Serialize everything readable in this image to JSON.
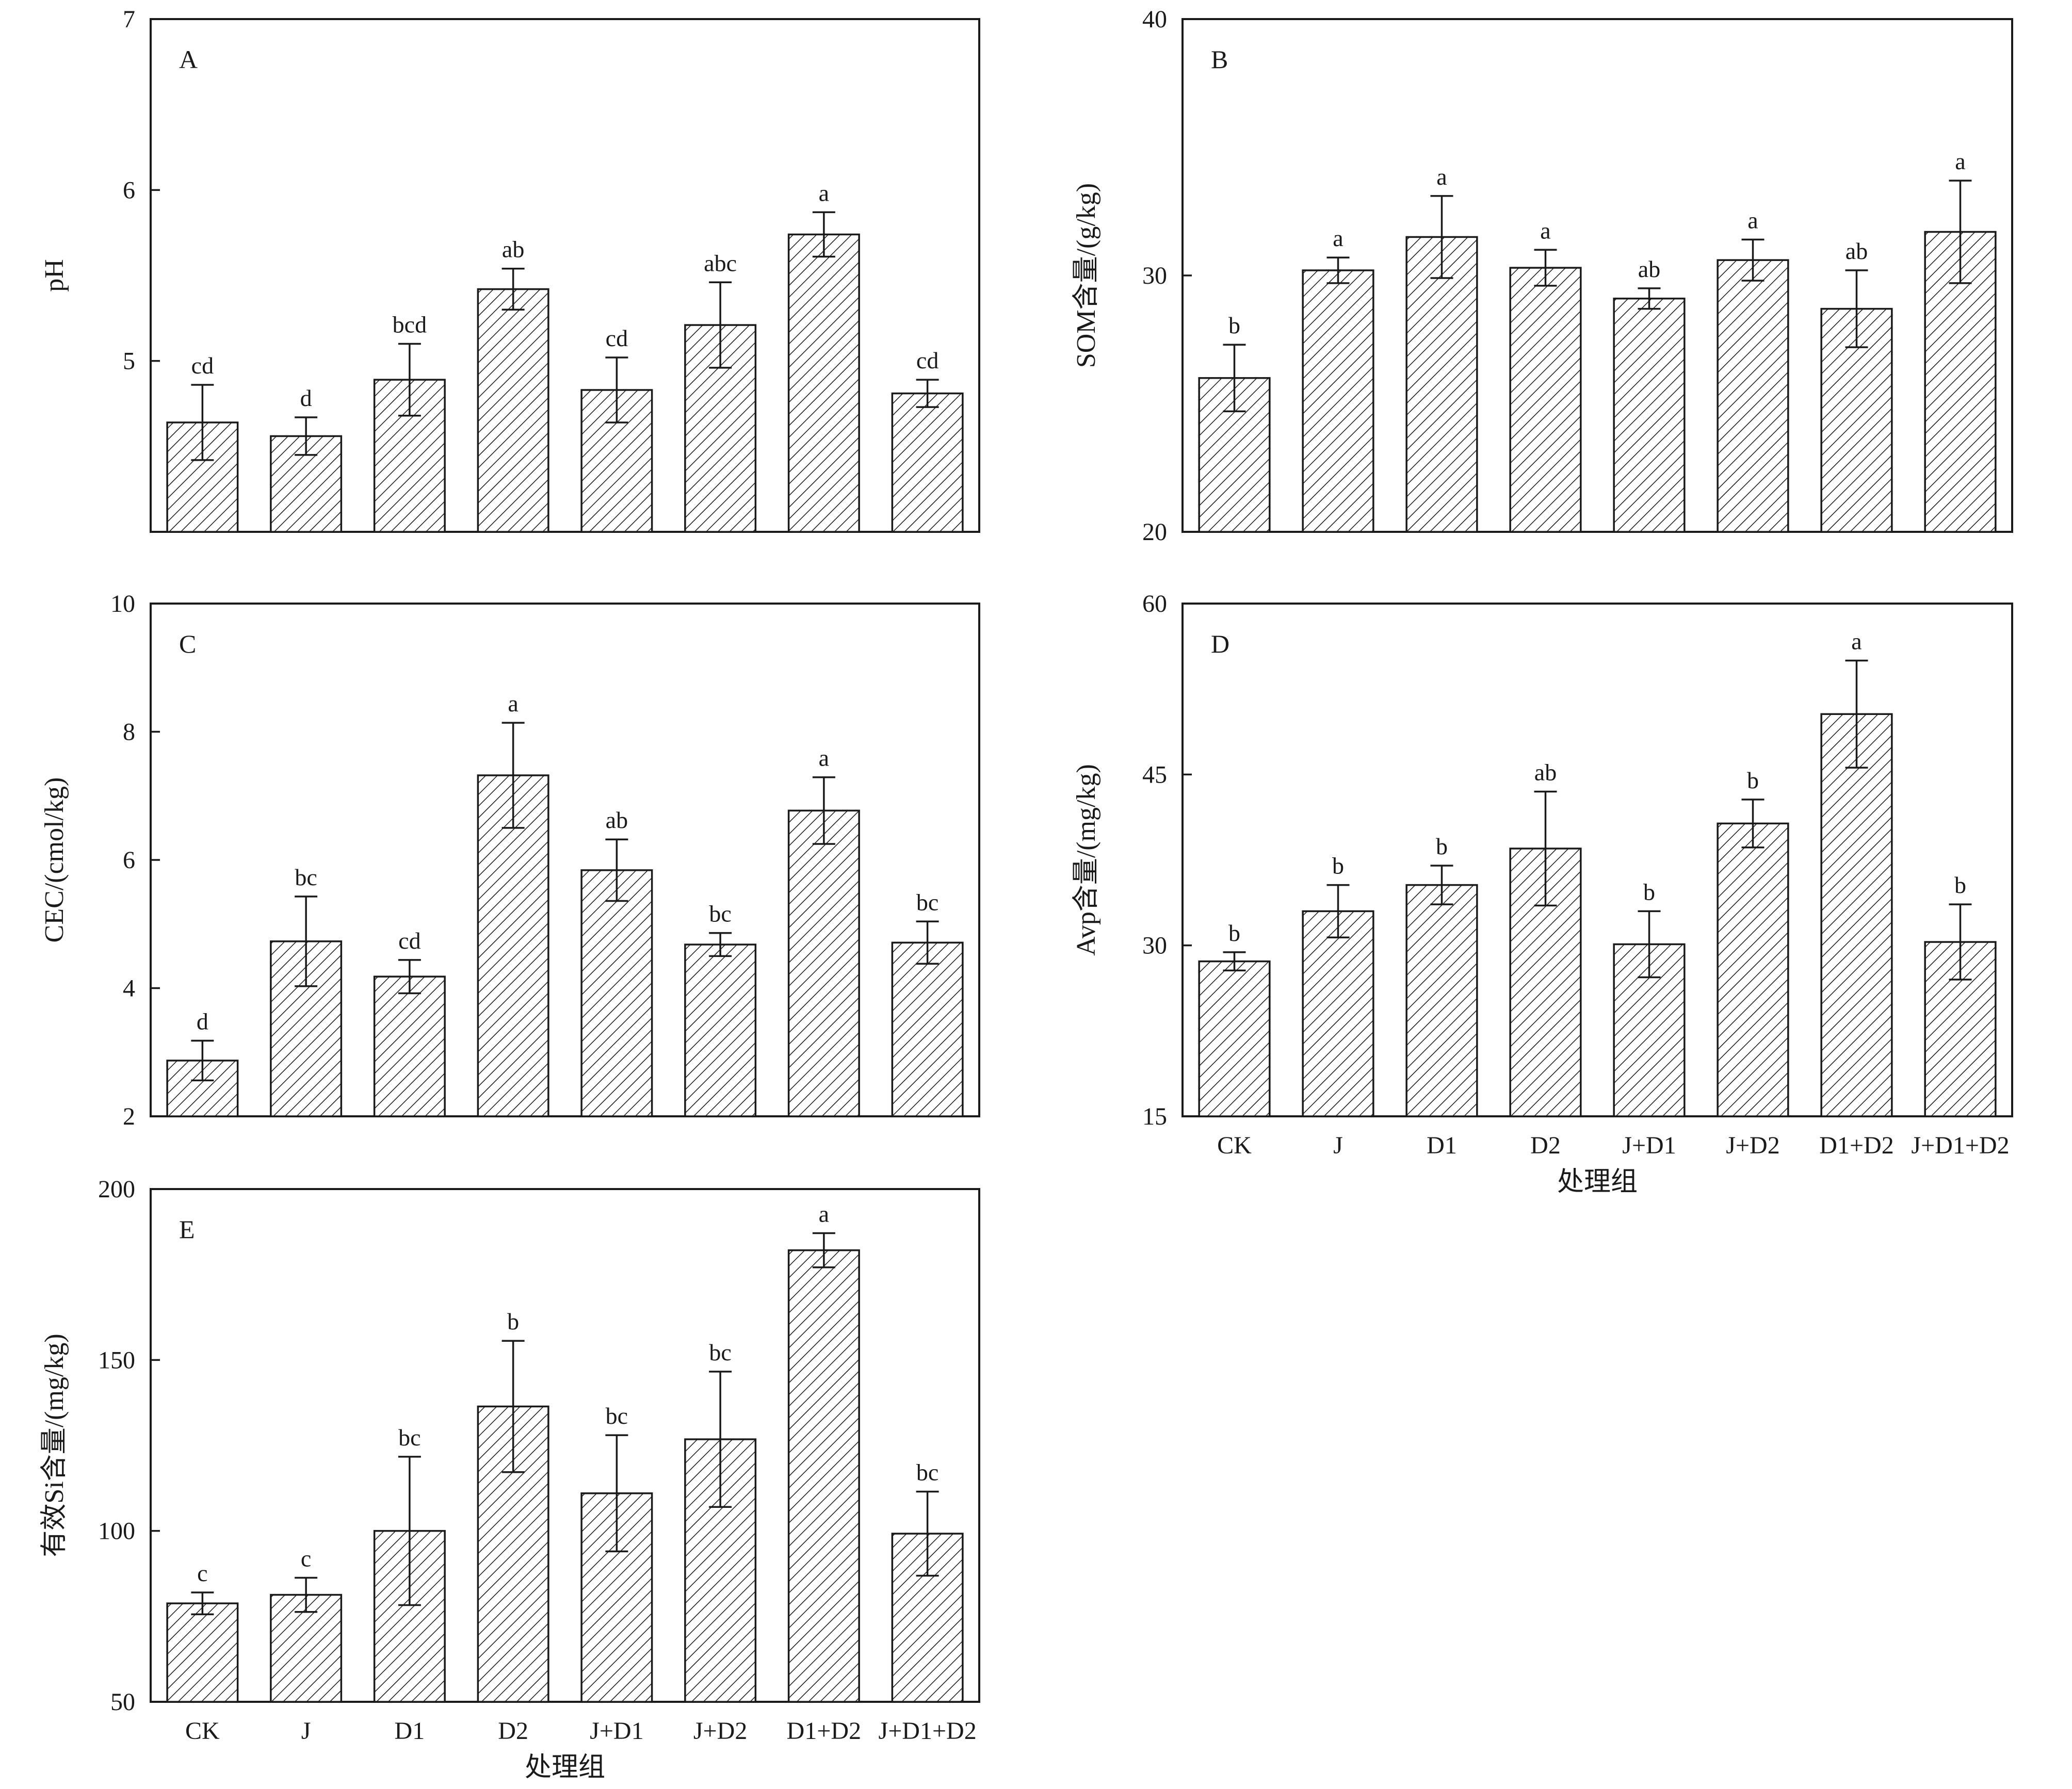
{
  "chart_data": [
    {
      "type": "bar",
      "panel": "A",
      "categories": [
        "CK",
        "J",
        "D1",
        "D2",
        "J+D1",
        "J+D2",
        "D1+D2",
        "J+D1+D2"
      ],
      "values": [
        4.64,
        4.56,
        4.89,
        5.42,
        4.83,
        5.21,
        5.74,
        4.81
      ],
      "errors": [
        0.22,
        0.11,
        0.21,
        0.12,
        0.19,
        0.25,
        0.13,
        0.08
      ],
      "significance": [
        "cd",
        "d",
        "bcd",
        "ab",
        "cd",
        "abc",
        "a",
        "cd"
      ],
      "ylabel": "pH",
      "xlabel": "",
      "ylim": [
        4,
        7
      ],
      "yticks": [
        5,
        6,
        7
      ],
      "show_xticklabels": false,
      "pattern": "hatched"
    },
    {
      "type": "bar",
      "panel": "B",
      "categories": [
        "CK",
        "J",
        "D1",
        "D2",
        "J+D1",
        "J+D2",
        "D1+D2",
        "J+D1+D2"
      ],
      "values": [
        26.0,
        30.2,
        31.5,
        30.3,
        29.1,
        30.6,
        28.7,
        31.7
      ],
      "errors": [
        1.3,
        0.5,
        1.6,
        0.7,
        0.4,
        0.8,
        1.5,
        2.0
      ],
      "significance": [
        "b",
        "a",
        "a",
        "a",
        "ab",
        "a",
        "ab",
        "a"
      ],
      "ylabel": "SOM含量/(g/kg)",
      "xlabel": "",
      "ylim": [
        20,
        40
      ],
      "yticks": [
        20,
        30,
        40
      ],
      "show_xticklabels": false,
      "pattern": "hatched"
    },
    {
      "type": "bar",
      "panel": "C",
      "categories": [
        "CK",
        "J",
        "D1",
        "D2",
        "J+D1",
        "J+D2",
        "D1+D2",
        "J+D1+D2"
      ],
      "values": [
        2.87,
        4.73,
        4.18,
        7.32,
        5.84,
        4.68,
        6.77,
        4.71
      ],
      "errors": [
        0.31,
        0.7,
        0.26,
        0.82,
        0.48,
        0.18,
        0.52,
        0.33
      ],
      "significance": [
        "d",
        "bc",
        "cd",
        "a",
        "ab",
        "bc",
        "a",
        "bc"
      ],
      "ylabel": "CEC/(cmol/kg)",
      "xlabel": "",
      "ylim": [
        2,
        10
      ],
      "yticks": [
        2,
        4,
        6,
        8,
        10
      ],
      "show_xticklabels": false,
      "pattern": "hatched"
    },
    {
      "type": "bar",
      "panel": "D",
      "categories": [
        "CK",
        "J",
        "D1",
        "D2",
        "J+D1",
        "J+D2",
        "D1+D2",
        "J+D1+D2"
      ],
      "values": [
        28.6,
        33.0,
        35.3,
        38.5,
        30.1,
        40.7,
        50.3,
        30.3
      ],
      "errors": [
        0.8,
        2.3,
        1.7,
        5.0,
        2.9,
        2.1,
        4.7,
        3.3
      ],
      "significance": [
        "b",
        "b",
        "b",
        "ab",
        "b",
        "b",
        "a",
        "b"
      ],
      "ylabel": "Avp含量/(mg/kg)",
      "xlabel": "处理组",
      "ylim": [
        15,
        60
      ],
      "yticks": [
        15,
        30,
        45,
        60
      ],
      "show_xticklabels": true,
      "pattern": "hatched"
    },
    {
      "type": "bar",
      "panel": "E",
      "categories": [
        "CK",
        "J",
        "D1",
        "D2",
        "J+D1",
        "J+D2",
        "D1+D2",
        "J+D1+D2"
      ],
      "values": [
        78.8,
        81.3,
        100.0,
        136.4,
        111.0,
        126.8,
        182.1,
        99.2
      ],
      "errors": [
        3.2,
        5.0,
        21.7,
        19.2,
        17.0,
        19.8,
        5.0,
        12.3
      ],
      "significance": [
        "c",
        "c",
        "bc",
        "b",
        "bc",
        "bc",
        "a",
        "bc"
      ],
      "ylabel": "有效Si含量/(mg/kg)",
      "xlabel": "处理组",
      "ylim": [
        50,
        200
      ],
      "yticks": [
        50,
        100,
        150,
        200
      ],
      "show_xticklabels": true,
      "pattern": "hatched"
    }
  ],
  "colors": {
    "line": "#1a1a1a",
    "bar_fill": "#ffffff",
    "hatch": "#1a1a1a",
    "background": "#ffffff"
  }
}
